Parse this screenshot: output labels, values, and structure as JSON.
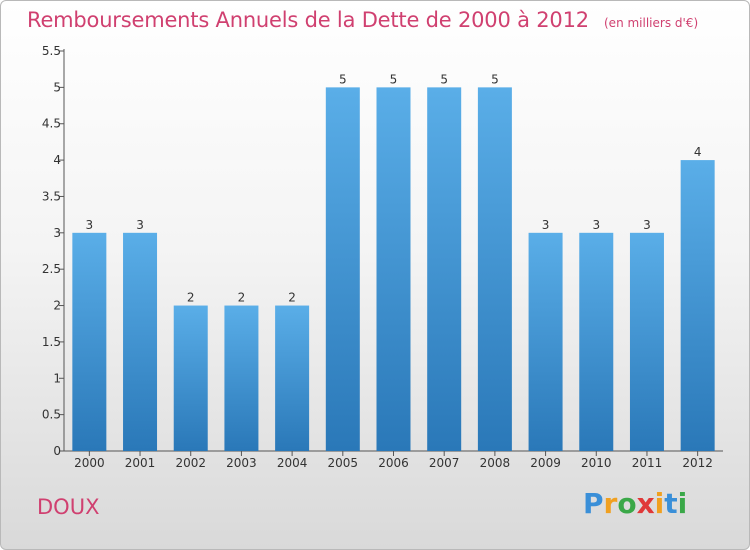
{
  "header": {
    "title": "Remboursements Annuels de la Dette de 2000 à 2012",
    "unit": "(en milliers d'€)"
  },
  "footer": {
    "city": "DOUX",
    "logo": "Proxiti"
  },
  "colors": {
    "title": "#d04070",
    "bar_top": "#5aaee8",
    "bar_bottom": "#2a78b8"
  },
  "chart_data": {
    "type": "bar",
    "title": "Remboursements Annuels de la Dette de 2000 à 2012",
    "xlabel": "",
    "ylabel": "",
    "categories": [
      "2000",
      "2001",
      "2002",
      "2003",
      "2004",
      "2005",
      "2006",
      "2007",
      "2008",
      "2009",
      "2010",
      "2011",
      "2012"
    ],
    "values": [
      3,
      3,
      2,
      2,
      2,
      5,
      5,
      5,
      5,
      3,
      3,
      3,
      4
    ],
    "data_labels": [
      "3",
      "3",
      "2",
      "2",
      "2",
      "5",
      "5",
      "5",
      "5",
      "3",
      "3",
      "3",
      "4"
    ],
    "ylim": [
      0,
      5.5
    ],
    "yticks": [
      0,
      0.5,
      1,
      1.5,
      2,
      2.5,
      3,
      3.5,
      4,
      4.5,
      5,
      5.5
    ],
    "ytick_labels": [
      "0",
      "0.5",
      "1",
      "1.5",
      "2",
      "2.5",
      "3",
      "3.5",
      "4",
      "4.5",
      "5",
      "5.5"
    ],
    "grid": false,
    "legend": "none"
  }
}
